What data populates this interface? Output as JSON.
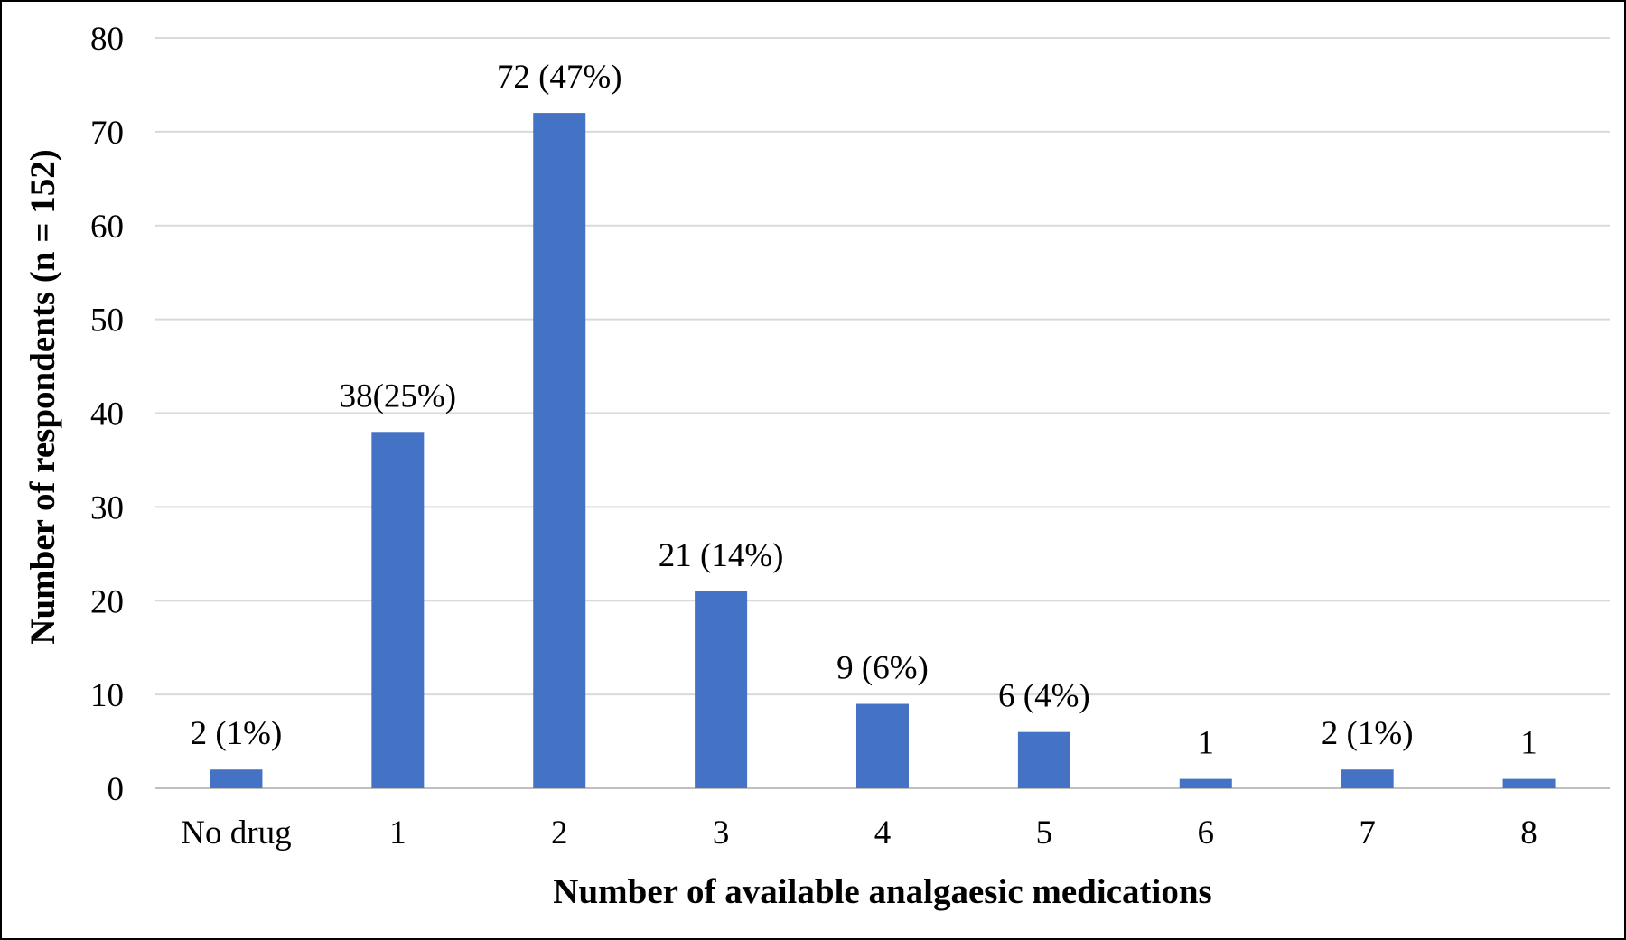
{
  "chart_data": {
    "type": "bar",
    "title": "",
    "xlabel": "Number of available analgaesic medications",
    "ylabel": "Number of respondents (n = 152)",
    "categories": [
      "No drug",
      "1",
      "2",
      "3",
      "4",
      "5",
      "6",
      "7",
      "8"
    ],
    "values": [
      2,
      38,
      72,
      21,
      9,
      6,
      1,
      2,
      1
    ],
    "data_labels": [
      "2 (1%)",
      "38(25%)",
      "72 (47%)",
      "21 (14%)",
      "9 (6%)",
      "6 (4%)",
      "1",
      "2 (1%)",
      "1"
    ],
    "ylim": [
      0,
      80
    ],
    "yticks": [
      0,
      10,
      20,
      30,
      40,
      50,
      60,
      70,
      80
    ],
    "grid": true,
    "legend": "none",
    "bar_color": "#4472C4",
    "grid_color": "#D9D9D9"
  }
}
